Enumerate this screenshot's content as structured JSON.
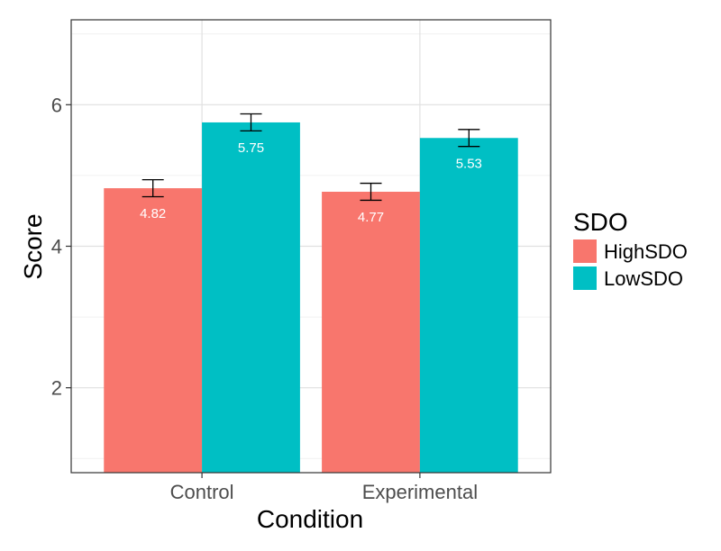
{
  "chart_data": {
    "type": "bar",
    "title": "",
    "xlabel": "Condition",
    "ylabel": "Score",
    "ylim": [
      0.8,
      7.2
    ],
    "yticks": [
      2,
      4,
      6
    ],
    "yticks_labels": [
      "2",
      "4",
      "6"
    ],
    "categories": [
      "Control",
      "Experimental"
    ],
    "series": [
      {
        "name": "HighSDO",
        "values": [
          4.82,
          4.77
        ],
        "labels": [
          "4.82",
          "4.77"
        ],
        "err": [
          0.12,
          0.12
        ],
        "color": "#F8766D"
      },
      {
        "name": "LowSDO",
        "values": [
          5.75,
          5.53
        ],
        "labels": [
          "5.75",
          "5.53"
        ],
        "err": [
          0.12,
          0.12
        ],
        "color": "#00BFC4"
      }
    ],
    "legend": {
      "title": "SDO",
      "position": "right"
    },
    "grid": true
  }
}
